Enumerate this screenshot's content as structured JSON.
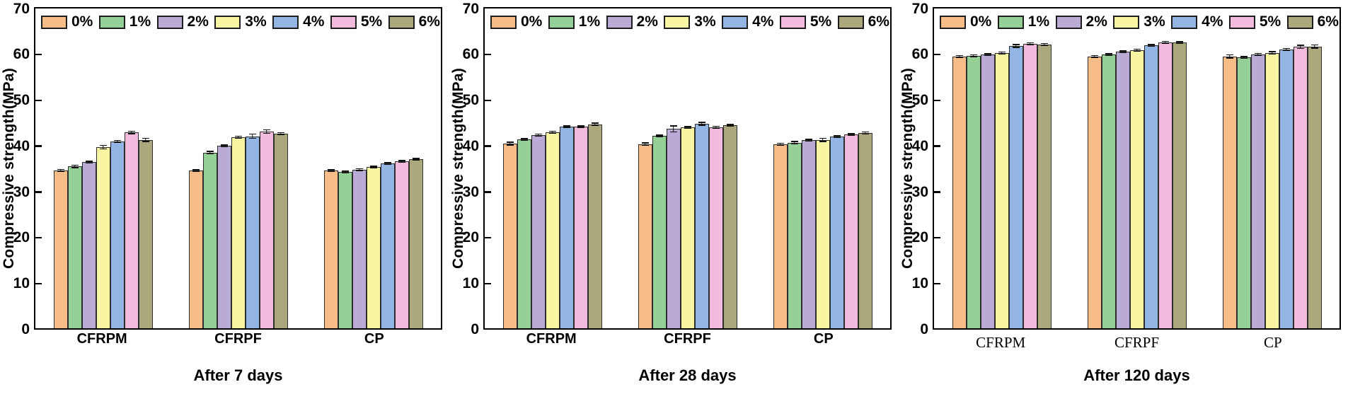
{
  "figure": {
    "background": "#ffffff"
  },
  "legend": {
    "labels": [
      "0%",
      "1%",
      "2%",
      "3%",
      "4%",
      "5%",
      "6%"
    ],
    "colors": [
      "#F7BD88",
      "#95D096",
      "#B9AAD6",
      "#F8F5A3",
      "#93B5E3",
      "#F2BADC",
      "#ACA87E"
    ],
    "swatch_border_color": "#1d1d1d",
    "position": "top-inside-row"
  },
  "axis": {
    "ylabel": "Compressive strength(MPa)",
    "ymin": 0,
    "ymax": 70,
    "yticks": [
      0,
      10,
      20,
      30,
      40,
      50,
      60,
      70
    ],
    "grid": false
  },
  "chart_data": [
    {
      "type": "bar",
      "title": "After 7 days",
      "ylabel": "Compressive strength(MPa)",
      "ylim": [
        0,
        70
      ],
      "yticks": [
        0,
        10,
        20,
        30,
        40,
        50,
        60,
        70
      ],
      "categories": [
        "CFRPM",
        "CFRPF",
        "CP"
      ],
      "series": [
        {
          "name": "0%",
          "values": [
            34.5,
            34.4,
            34.4
          ],
          "errors": [
            0.3,
            0.3,
            0.25
          ]
        },
        {
          "name": "1%",
          "values": [
            35.3,
            38.3,
            34.1
          ],
          "errors": [
            0.4,
            0.4,
            0.15
          ]
        },
        {
          "name": "2%",
          "values": [
            36.2,
            39.8,
            34.6
          ],
          "errors": [
            0.3,
            0.3,
            0.2
          ]
        },
        {
          "name": "3%",
          "values": [
            39.5,
            41.7,
            35.2
          ],
          "errors": [
            0.5,
            0.3,
            0.2
          ]
        },
        {
          "name": "4%",
          "values": [
            40.8,
            41.9,
            35.9
          ],
          "errors": [
            0.3,
            0.6,
            0.25
          ]
        },
        {
          "name": "5%",
          "values": [
            42.7,
            42.9,
            36.4
          ],
          "errors": [
            0.4,
            0.5,
            0.3
          ]
        },
        {
          "name": "6%",
          "values": [
            41.1,
            42.5,
            36.9
          ],
          "errors": [
            0.5,
            0.3,
            0.2
          ]
        }
      ]
    },
    {
      "type": "bar",
      "title": "After 28 days",
      "ylabel": "Compressive strength(MPa)",
      "ylim": [
        0,
        70
      ],
      "yticks": [
        0,
        10,
        20,
        30,
        40,
        50,
        60,
        70
      ],
      "categories": [
        "CFRPM",
        "CFRPF",
        "CP"
      ],
      "series": [
        {
          "name": "0%",
          "values": [
            40.3,
            40.2,
            40.2
          ],
          "errors": [
            0.4,
            0.4,
            0.3
          ]
        },
        {
          "name": "1%",
          "values": [
            41.2,
            42.0,
            40.5
          ],
          "errors": [
            0.2,
            0.3,
            0.4
          ]
        },
        {
          "name": "2%",
          "values": [
            42.2,
            43.5,
            41.0
          ],
          "errors": [
            0.2,
            0.8,
            0.25
          ]
        },
        {
          "name": "3%",
          "values": [
            42.8,
            43.8,
            41.1
          ],
          "errors": [
            0.3,
            0.2,
            0.5
          ]
        },
        {
          "name": "4%",
          "values": [
            44.0,
            44.6,
            41.8
          ],
          "errors": [
            0.3,
            0.4,
            0.2
          ]
        },
        {
          "name": "5%",
          "values": [
            44.0,
            43.9,
            42.3
          ],
          "errors": [
            0.2,
            0.3,
            0.25
          ]
        },
        {
          "name": "6%",
          "values": [
            44.5,
            44.3,
            42.6
          ],
          "errors": [
            0.35,
            0.2,
            0.35
          ]
        }
      ]
    },
    {
      "type": "bar",
      "title": "After 120 days",
      "ylabel": "Compressive strength(MPa)",
      "ylim": [
        0,
        70
      ],
      "yticks": [
        0,
        10,
        20,
        30,
        40,
        50,
        60,
        70
      ],
      "categories": [
        "CFRPM",
        "CFRPF",
        "CP"
      ],
      "series": [
        {
          "name": "0%",
          "values": [
            59.3,
            59.3,
            59.3
          ],
          "errors": [
            0.3,
            0.25,
            0.5
          ]
        },
        {
          "name": "1%",
          "values": [
            59.5,
            59.7,
            59.1
          ],
          "errors": [
            0.2,
            0.25,
            0.3
          ]
        },
        {
          "name": "2%",
          "values": [
            59.7,
            60.3,
            59.8
          ],
          "errors": [
            0.2,
            0.3,
            0.3
          ]
        },
        {
          "name": "3%",
          "values": [
            60.1,
            60.7,
            60.1
          ],
          "errors": [
            0.25,
            0.3,
            0.4
          ]
        },
        {
          "name": "4%",
          "values": [
            61.6,
            61.7,
            60.8
          ],
          "errors": [
            0.4,
            0.3,
            0.35
          ]
        },
        {
          "name": "5%",
          "values": [
            62.1,
            62.4,
            61.4
          ],
          "errors": [
            0.3,
            0.2,
            0.5
          ]
        },
        {
          "name": "6%",
          "values": [
            61.9,
            62.3,
            61.5
          ],
          "errors": [
            0.35,
            0.3,
            0.45
          ]
        }
      ]
    }
  ]
}
